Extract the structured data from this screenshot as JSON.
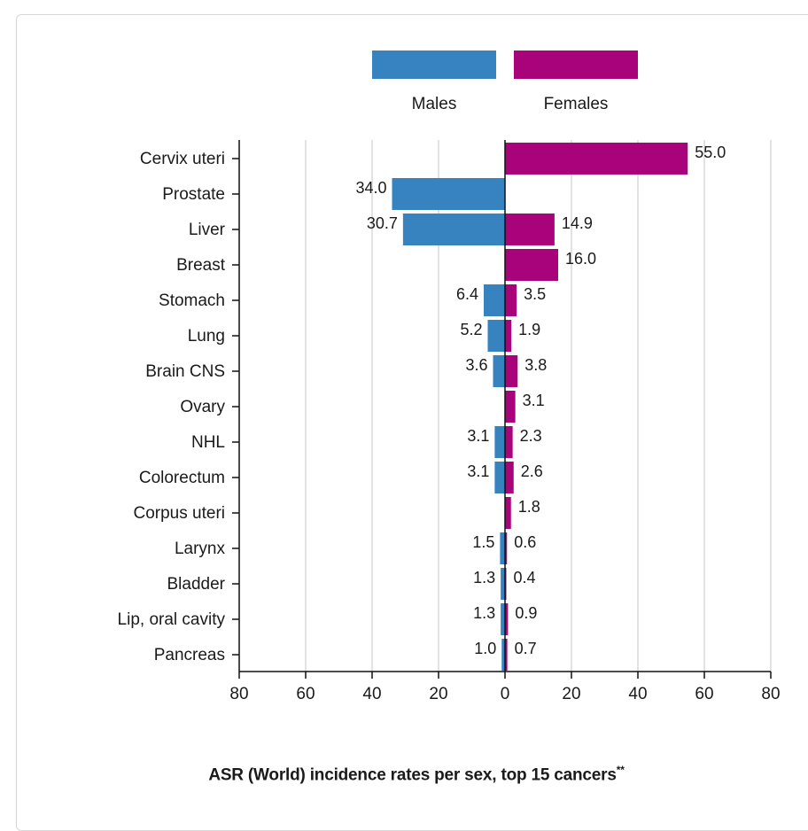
{
  "chart_data": {
    "type": "bar",
    "orientation": "horizontal-diverging",
    "title": "ASR (World) incidence rates per sex, top 15 cancers",
    "title_mark": "**",
    "categories": [
      "Cervix uteri",
      "Prostate",
      "Liver",
      "Breast",
      "Stomach",
      "Lung",
      "Brain CNS",
      "Ovary",
      "NHL",
      "Colorectum",
      "Corpus uteri",
      "Larynx",
      "Bladder",
      "Lip, oral cavity",
      "Pancreas"
    ],
    "series": [
      {
        "name": "Males",
        "color": "#3683bf",
        "side": "left",
        "values": [
          null,
          34.0,
          30.7,
          null,
          6.4,
          5.2,
          3.6,
          null,
          3.1,
          3.1,
          null,
          1.5,
          1.3,
          1.3,
          1.0
        ],
        "labels": [
          "",
          "34.0",
          "30.7",
          "",
          "6.4",
          "5.2",
          "3.6",
          "",
          "3.1",
          "3.1",
          "",
          "1.5",
          "1.3",
          "1.3",
          "1.0"
        ]
      },
      {
        "name": "Females",
        "color": "#a8037a",
        "side": "right",
        "values": [
          55.0,
          null,
          14.9,
          16.0,
          3.5,
          1.9,
          3.8,
          3.1,
          2.3,
          2.6,
          1.8,
          0.6,
          0.4,
          0.9,
          0.7
        ],
        "labels": [
          "55.0",
          "",
          "14.9",
          "16.0",
          "3.5",
          "1.9",
          "3.8",
          "3.1",
          "2.3",
          "2.6",
          "1.8",
          "0.6",
          "0.4",
          "0.9",
          "0.7"
        ]
      }
    ],
    "x_ticks": [
      "80",
      "60",
      "40",
      "20",
      "0",
      "20",
      "40",
      "60",
      "80"
    ],
    "xlim": [
      -80,
      80
    ],
    "grid": true,
    "legend": "top"
  }
}
